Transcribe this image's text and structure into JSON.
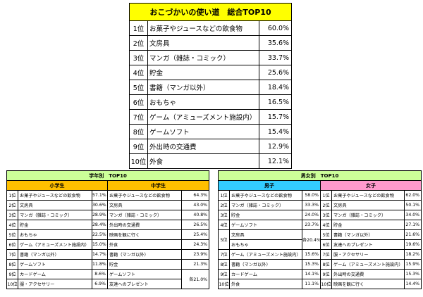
{
  "main": {
    "title": "おこづかいの使い道　総合TOP10",
    "rows": [
      {
        "rank": "1位",
        "item": "お菓子やジュースなどの飲食物",
        "pct": "60.0%"
      },
      {
        "rank": "2位",
        "item": "文房具",
        "pct": "35.6%"
      },
      {
        "rank": "3位",
        "item": "マンガ（雑誌・コミック）",
        "pct": "33.7%"
      },
      {
        "rank": "4位",
        "item": "貯金",
        "pct": "25.6%"
      },
      {
        "rank": "5位",
        "item": "書籍（マンガ以外）",
        "pct": "18.4%"
      },
      {
        "rank": "6位",
        "item": "おもちゃ",
        "pct": "16.5%"
      },
      {
        "rank": "7位",
        "item": "ゲーム（アミューズメント施設内）",
        "pct": "15.7%"
      },
      {
        "rank": "8位",
        "item": "ゲームソフト",
        "pct": "15.4%"
      },
      {
        "rank": "9位",
        "item": "外出時の交通費",
        "pct": "12.9%"
      },
      {
        "rank": "10位",
        "item": "外食",
        "pct": "12.1%"
      }
    ]
  },
  "grade": {
    "title": "学年別　TOP10",
    "col1": "小学生",
    "col2": "中学生",
    "r1": {
      "rank": "1位",
      "a": "お菓子やジュースなどの飲食物",
      "ap": "57.1%",
      "b": "お菓子やジュースなどの飲食物",
      "bp": "64.3%"
    },
    "r2": {
      "rank": "2位",
      "a": "文房具",
      "ap": "30.6%",
      "b": "文房具",
      "bp": "43.0%"
    },
    "r3": {
      "rank": "3位",
      "a": "マンガ（雑誌・コミック）",
      "ap": "28.9%",
      "b": "マンガ（雑誌・コミック）",
      "bp": "40.8%"
    },
    "r4": {
      "rank": "4位",
      "a": "貯金",
      "ap": "28.4%",
      "b": "外出時の交通費",
      "bp": "26.5%"
    },
    "r5": {
      "rank": "5位",
      "a": "おもちゃ",
      "ap": "22.5%",
      "b": "映画を観に行く",
      "bp": "25.4%"
    },
    "r6": {
      "rank": "6位",
      "a": "ゲーム（アミューズメント施設内）",
      "ap": "15.0%",
      "b": "外食",
      "bp": "24.3%"
    },
    "r7": {
      "rank": "7位",
      "a": "書籍（マンガ以外）",
      "ap": "14.7%",
      "b": "書籍（マンガ以外）",
      "bp": "23.9%"
    },
    "r8": {
      "rank": "8位",
      "a": "ゲームソフト",
      "ap": "11.8%",
      "b": "貯金",
      "bp": "21.3%"
    },
    "r9": {
      "rank": "9位",
      "a": "カードゲーム",
      "ap": "8.6%",
      "b": "ゲームソフト",
      "bp": "各21.0%"
    },
    "r10": {
      "rank": "10位",
      "a": "服・アクセサリー",
      "ap": "6.9%",
      "b": "友達へのプレゼント"
    }
  },
  "gender": {
    "title": "男女別　TOP10",
    "col1": "男子",
    "col2": "女子",
    "r1": {
      "rank": "1位",
      "a": "お菓子やジュースなどの飲食物",
      "ap": "58.0%",
      "b": "お菓子やジュースなどの飲食物",
      "bp": "62.0%"
    },
    "r2": {
      "rank": "2位",
      "a": "マンガ（雑誌・コミック）",
      "ap": "33.3%",
      "b": "文房具",
      "bp": "50.1%"
    },
    "r3": {
      "rank": "3位",
      "a": "貯金",
      "ap": "24.0%",
      "b": "マンガ（雑誌・コミック）",
      "bp": "34.0%"
    },
    "r4": {
      "rank": "4位",
      "a": "ゲームソフト",
      "ap": "23.7%",
      "b": "貯金",
      "bp": "27.1%"
    },
    "r5": {
      "rank": "5位",
      "a": "文房具",
      "ap": "各20.4%",
      "b": "書籍（マンガ以外）",
      "bp": "21.6%"
    },
    "r6": {
      "rank": "6位",
      "a": "おもちゃ",
      "b": "友達へのプレゼント",
      "bp": "19.6%"
    },
    "r7": {
      "rank": "7位",
      "a": "ゲーム（アミューズメント施設内）",
      "ap": "15.6%",
      "b": "服・アクセサリー",
      "bp": "18.2%"
    },
    "r8": {
      "rank": "8位",
      "a": "書籍（マンガ以外）",
      "ap": "15.3%",
      "b": "ゲーム（アミューズメント施設内）",
      "bp": "15.9%"
    },
    "r9": {
      "rank": "9位",
      "a": "カードゲーム",
      "ap": "14.1%",
      "b": "外出時の交通費",
      "bp": "15.3%"
    },
    "r10": {
      "rank": "10位",
      "a": "外食",
      "ap": "11.1%",
      "b": "映画を観に行く",
      "bp": "14.4%"
    }
  }
}
